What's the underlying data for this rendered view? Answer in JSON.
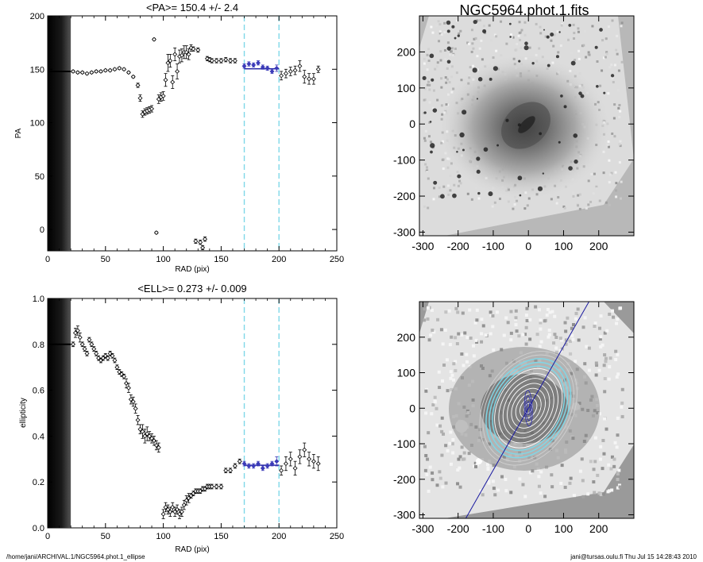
{
  "page": {
    "footer_left": "/home/jani/ARCHIVAL.1/NGC5964.phot.1_ellipse",
    "footer_right": "jani@tursas.oulu.fi  Thu Jul 15 14:28:43 2010"
  },
  "colors": {
    "fit_line": "#1a1aa0",
    "window_lines": "#7fd8e8",
    "markers": "#000000",
    "fit_points": "#3a3ab8"
  },
  "chart_data": [
    {
      "type": "scatter",
      "title": "<PA>= 150.4 +/-   2.4",
      "xlabel": "RAD (pix)",
      "ylabel": "PA",
      "xlim": [
        0,
        250
      ],
      "ylim": [
        -20,
        200
      ],
      "xticks": [
        0,
        50,
        100,
        150,
        200,
        250
      ],
      "yticks": [
        0,
        50,
        100,
        150,
        200
      ],
      "shaded_region_x": [
        0,
        20
      ],
      "mean_value": 150.4,
      "mean_error": 2.4,
      "fit_window": [
        170,
        200
      ],
      "series": [
        {
          "x": [
            22,
            26,
            30,
            34,
            38,
            42,
            46,
            50,
            54,
            58,
            62,
            66,
            70,
            74,
            78,
            80,
            82,
            84,
            86,
            88,
            90,
            92,
            94,
            96,
            98,
            100,
            102,
            104,
            106,
            108,
            110,
            112,
            114,
            116,
            118,
            120,
            122,
            124,
            126,
            128,
            130,
            132,
            134,
            136,
            138,
            140,
            142,
            146,
            150,
            154,
            158,
            162,
            170,
            174,
            178,
            182,
            186,
            190,
            194,
            198,
            202,
            206,
            210,
            214,
            218,
            222,
            226,
            230,
            234
          ],
          "y": [
            148,
            147,
            147,
            146,
            147,
            148,
            148,
            149,
            149,
            150,
            151,
            150,
            147,
            143,
            135,
            123,
            108,
            110,
            111,
            112,
            113,
            178,
            -3,
            122,
            124,
            125,
            140,
            156,
            158,
            138,
            164,
            148,
            162,
            163,
            166,
            166,
            164,
            170,
            169,
            -11,
            168,
            -12,
            -17,
            -9,
            160,
            159,
            158,
            158,
            158,
            159,
            158,
            158,
            153,
            155,
            154,
            156,
            152,
            151,
            148,
            151,
            144,
            146,
            148,
            149,
            153,
            143,
            141,
            141,
            150
          ],
          "err": [
            1,
            1,
            1,
            1,
            1,
            1,
            1,
            1,
            1,
            1,
            1,
            1,
            1,
            1,
            2,
            3,
            3,
            3,
            3,
            3,
            3,
            1,
            1,
            4,
            4,
            4,
            6,
            8,
            6,
            6,
            6,
            7,
            6,
            6,
            6,
            6,
            5,
            3,
            2,
            2,
            2,
            2,
            2,
            2,
            2,
            2,
            2,
            2,
            2,
            2,
            2,
            2,
            2,
            2,
            2,
            2,
            2,
            2,
            2,
            3,
            4,
            4,
            4,
            4,
            5,
            6,
            5,
            5,
            3
          ]
        }
      ]
    },
    {
      "type": "scatter",
      "title": "<ELL>= 0.273 +/-  0.009",
      "xlabel": "RAD (pix)",
      "ylabel": "ellipticity",
      "xlim": [
        0,
        250
      ],
      "ylim": [
        0,
        1
      ],
      "xticks": [
        0,
        50,
        100,
        150,
        200,
        250
      ],
      "yticks": [
        0.0,
        0.2,
        0.4,
        0.6,
        0.8,
        1.0
      ],
      "ytick_labels": [
        "0.0",
        "0.2",
        "0.4",
        "0.6",
        "0.8",
        "1.0"
      ],
      "shaded_region_x": [
        0,
        20
      ],
      "mean_value": 0.273,
      "mean_error": 0.009,
      "fit_window": [
        170,
        200
      ],
      "series": [
        {
          "x": [
            22,
            24,
            26,
            28,
            30,
            32,
            34,
            36,
            38,
            40,
            42,
            44,
            46,
            48,
            50,
            52,
            54,
            56,
            58,
            60,
            62,
            64,
            66,
            68,
            70,
            72,
            74,
            76,
            78,
            80,
            82,
            84,
            86,
            88,
            90,
            92,
            94,
            96,
            100,
            102,
            104,
            106,
            108,
            110,
            112,
            114,
            116,
            118,
            120,
            122,
            124,
            126,
            128,
            130,
            132,
            134,
            136,
            138,
            140,
            142,
            146,
            150,
            154,
            158,
            162,
            166,
            170,
            174,
            178,
            182,
            186,
            190,
            194,
            198,
            202,
            206,
            210,
            214,
            218,
            222,
            226,
            230,
            234
          ],
          "y": [
            0.8,
            0.85,
            0.86,
            0.83,
            0.8,
            0.78,
            0.76,
            0.82,
            0.8,
            0.78,
            0.76,
            0.74,
            0.73,
            0.74,
            0.75,
            0.74,
            0.76,
            0.75,
            0.73,
            0.7,
            0.68,
            0.67,
            0.66,
            0.63,
            0.61,
            0.56,
            0.55,
            0.52,
            0.47,
            0.43,
            0.42,
            0.4,
            0.41,
            0.4,
            0.39,
            0.38,
            0.36,
            0.35,
            0.06,
            0.09,
            0.08,
            0.07,
            0.09,
            0.07,
            0.08,
            0.06,
            0.07,
            0.1,
            0.12,
            0.13,
            0.14,
            0.15,
            0.16,
            0.16,
            0.16,
            0.17,
            0.17,
            0.18,
            0.18,
            0.18,
            0.18,
            0.18,
            0.25,
            0.25,
            0.27,
            0.29,
            0.28,
            0.27,
            0.27,
            0.28,
            0.26,
            0.27,
            0.28,
            0.29,
            0.25,
            0.28,
            0.3,
            0.26,
            0.31,
            0.34,
            0.3,
            0.29,
            0.28
          ],
          "err": [
            0.01,
            0.02,
            0.02,
            0.02,
            0.01,
            0.01,
            0.01,
            0.01,
            0.01,
            0.01,
            0.01,
            0.01,
            0.01,
            0.01,
            0.01,
            0.01,
            0.01,
            0.01,
            0.01,
            0.01,
            0.01,
            0.01,
            0.01,
            0.02,
            0.02,
            0.02,
            0.02,
            0.02,
            0.02,
            0.02,
            0.03,
            0.03,
            0.03,
            0.02,
            0.02,
            0.02,
            0.02,
            0.02,
            0.02,
            0.02,
            0.02,
            0.02,
            0.02,
            0.02,
            0.02,
            0.02,
            0.02,
            0.02,
            0.02,
            0.02,
            0.01,
            0.01,
            0.01,
            0.01,
            0.01,
            0.01,
            0.01,
            0.01,
            0.01,
            0.01,
            0.01,
            0.01,
            0.01,
            0.01,
            0.01,
            0.01,
            0.01,
            0.01,
            0.01,
            0.01,
            0.01,
            0.01,
            0.01,
            0.02,
            0.02,
            0.03,
            0.03,
            0.03,
            0.03,
            0.03,
            0.03,
            0.03,
            0.03
          ]
        }
      ]
    },
    {
      "type": "heatmap",
      "title": "NGC5964.phot.1.fits",
      "xlim": [
        -310,
        300
      ],
      "ylim": [
        -310,
        300
      ],
      "xticks": [
        -300,
        -200,
        -100,
        0,
        100,
        200
      ],
      "yticks": [
        -300,
        -200,
        -100,
        0,
        100,
        200
      ]
    },
    {
      "type": "heatmap",
      "title": "",
      "xlim": [
        -310,
        300
      ],
      "ylim": [
        -310,
        300
      ],
      "xticks": [
        -300,
        -200,
        -100,
        0,
        100,
        200
      ],
      "yticks": [
        -300,
        -200,
        -100,
        0,
        100,
        200
      ],
      "ellipse_overlay": {
        "position_angle_deg": 150.4,
        "ellipticity": 0.273,
        "inner_radii": [
          20,
          40,
          60,
          80,
          100,
          120,
          140,
          160
        ],
        "highlight_radii": [
          170,
          185,
          200
        ],
        "outer_radii": [
          215,
          230
        ]
      }
    }
  ]
}
